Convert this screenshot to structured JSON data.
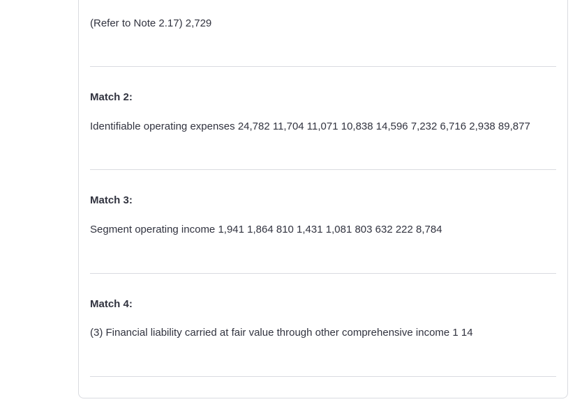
{
  "results": {
    "partial_text": "(Refer to Note 2.17) 2,729",
    "matches": [
      {
        "label": "Match 2:",
        "text": "Identifiable operating expenses 24,782 11,704 11,071 10,838 14,596 7,232 6,716 2,938 89,877"
      },
      {
        "label": "Match 3:",
        "text": "Segment operating income 1,941 1,864 810 1,431 1,081 803 632 222 8,784"
      },
      {
        "label": "Match 4:",
        "text": "(3) Financial liability carried at fair value through other comprehensive income 1 14"
      }
    ]
  }
}
